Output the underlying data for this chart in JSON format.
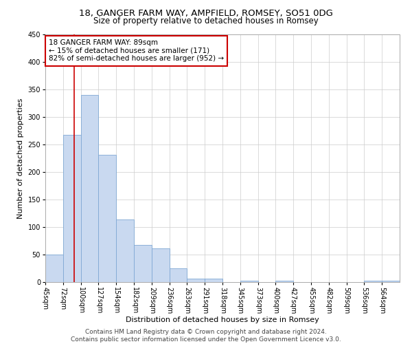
{
  "title1": "18, GANGER FARM WAY, AMPFIELD, ROMSEY, SO51 0DG",
  "title2": "Size of property relative to detached houses in Romsey",
  "xlabel": "Distribution of detached houses by size in Romsey",
  "ylabel": "Number of detached properties",
  "annotation_line1": "18 GANGER FARM WAY: 89sqm",
  "annotation_line2": "← 15% of detached houses are smaller (171)",
  "annotation_line3": "82% of semi-detached houses are larger (952) →",
  "property_size": 89,
  "bar_color": "#c9d9f0",
  "bar_edge_color": "#7fa8d4",
  "vline_color": "#cc0000",
  "annotation_box_color": "#cc0000",
  "grid_color": "#cccccc",
  "background_color": "#ffffff",
  "bin_edges": [
    45,
    72,
    100,
    127,
    154,
    182,
    209,
    236,
    263,
    291,
    318,
    345,
    373,
    400,
    427,
    455,
    482,
    509,
    536,
    564,
    591
  ],
  "bin_counts": [
    50,
    267,
    340,
    231,
    114,
    67,
    61,
    25,
    6,
    6,
    0,
    3,
    0,
    3,
    0,
    0,
    0,
    0,
    3,
    3
  ],
  "ylim": [
    0,
    450
  ],
  "yticks": [
    0,
    50,
    100,
    150,
    200,
    250,
    300,
    350,
    400,
    450
  ],
  "footer_text": "Contains HM Land Registry data © Crown copyright and database right 2024.\nContains public sector information licensed under the Open Government Licence v3.0.",
  "title1_fontsize": 9.5,
  "title2_fontsize": 8.5,
  "xlabel_fontsize": 8,
  "ylabel_fontsize": 8,
  "tick_fontsize": 7,
  "annotation_fontsize": 7.5,
  "footer_fontsize": 6.5
}
